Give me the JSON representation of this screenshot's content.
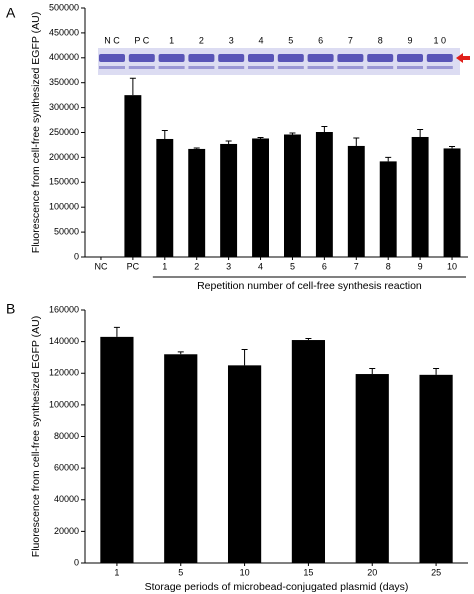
{
  "chart_data": [
    {
      "type": "bar",
      "panel": "A",
      "ylabel": "Fluorescence from cell-free synthesized EGFP (AU)",
      "xlabel": "Repetition number of cell-free synthesis reaction",
      "categories": [
        "NC",
        "PC",
        "1",
        "2",
        "3",
        "4",
        "5",
        "6",
        "7",
        "8",
        "9",
        "10"
      ],
      "values": [
        0,
        325000,
        237000,
        217000,
        227000,
        238000,
        246000,
        251000,
        223000,
        192000,
        241000,
        218000
      ],
      "errors": [
        0,
        34000,
        17000,
        2000,
        6000,
        2000,
        3000,
        11000,
        16000,
        8000,
        15000,
        4000
      ],
      "color": "#000000",
      "ylim": [
        0,
        500000
      ],
      "yticks": [
        0,
        50000,
        100000,
        150000,
        200000,
        250000,
        300000,
        350000,
        400000,
        450000,
        500000
      ],
      "gel_labels": [
        "N C",
        "P C",
        "1",
        "2",
        "3",
        "4",
        "5",
        "6",
        "7",
        "8",
        "9",
        "1 0"
      ]
    },
    {
      "type": "bar",
      "panel": "B",
      "ylabel": "Fluorescence from cell-free synthesized EGFP (AU)",
      "xlabel": "Storage periods of microbead-conjugated plasmid (days)",
      "categories": [
        "1",
        "5",
        "10",
        "15",
        "20",
        "25"
      ],
      "values": [
        143000,
        132000,
        125000,
        141000,
        119500,
        119000
      ],
      "errors": [
        6000,
        1500,
        10000,
        1000,
        3500,
        4000
      ],
      "color": "#000000",
      "ylim": [
        0,
        160000
      ],
      "yticks": [
        0,
        20000,
        40000,
        60000,
        80000,
        100000,
        120000,
        140000,
        160000
      ]
    }
  ]
}
